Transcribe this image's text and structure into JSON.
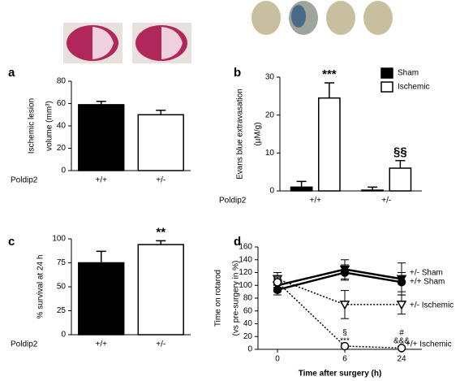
{
  "chart_data": [
    {
      "type": "bar",
      "panel": "a",
      "ylabel": [
        "Ischemic lesion",
        "volume (mm³)"
      ],
      "row_label": "Poldip2",
      "categories": [
        "+/+",
        "+/-"
      ],
      "values": [
        59,
        50
      ],
      "errors": [
        3,
        4
      ],
      "colors": [
        "#000000",
        "#ffffff"
      ],
      "ylim": [
        0,
        80
      ],
      "yticks": [
        0,
        20,
        40,
        60,
        80
      ]
    },
    {
      "type": "bar",
      "panel": "b",
      "ylabel": [
        "Evans blue extravasation",
        "(µM/g)"
      ],
      "row_label": "Poldip2",
      "categories": [
        "+/+",
        "+/-"
      ],
      "series": [
        {
          "name": "Sham",
          "color": "#000000",
          "values": [
            1,
            0.2
          ],
          "errors": [
            1.5,
            0.8
          ]
        },
        {
          "name": "Ischemic",
          "color": "#ffffff",
          "values": [
            24.5,
            6
          ],
          "errors": [
            4,
            2
          ]
        }
      ],
      "annotations": [
        "***",
        "§§"
      ],
      "ylim": [
        0,
        30
      ],
      "yticks": [
        0,
        10,
        20,
        30
      ]
    },
    {
      "type": "bar",
      "panel": "c",
      "ylabel": [
        "% survival at 24 h"
      ],
      "row_label": "Poldip2",
      "categories": [
        "+/+",
        "+/-"
      ],
      "values": [
        75,
        94
      ],
      "errors": [
        12,
        4
      ],
      "colors": [
        "#000000",
        "#ffffff"
      ],
      "annotations": [
        "**"
      ],
      "ylim": [
        0,
        100
      ],
      "yticks": [
        0,
        25,
        50,
        75,
        100
      ]
    },
    {
      "type": "line",
      "panel": "d",
      "ylabel": [
        "Time on rotarod",
        "(vs pre-surgery in %)"
      ],
      "xlabel": "Time after surgery (h)",
      "categories": [
        "0",
        "6",
        "24"
      ],
      "series": [
        {
          "name": "+/- Sham",
          "color": "#000000",
          "marker": "triangle",
          "filled": true,
          "dashed": false,
          "values": [
            100,
            125,
            110
          ],
          "errors": [
            10,
            15,
            25
          ]
        },
        {
          "name": "+/+ Sham",
          "color": "#000000",
          "marker": "circle",
          "filled": true,
          "dashed": false,
          "values": [
            93,
            120,
            105
          ],
          "errors": [
            8,
            12,
            15
          ]
        },
        {
          "name": "+/- Ischemic",
          "color": "#000000",
          "marker": "triangle",
          "filled": false,
          "dashed": true,
          "values": [
            110,
            70,
            70
          ],
          "errors": [
            10,
            22,
            15
          ]
        },
        {
          "name": "+/+ Ischemic",
          "color": "#000000",
          "marker": "circle",
          "filled": false,
          "dashed": true,
          "values": [
            105,
            5,
            2
          ],
          "errors": [
            8,
            2,
            2
          ]
        }
      ],
      "annotations": [
        "§",
        "***",
        "#",
        "&&&"
      ],
      "ylim": [
        0,
        160
      ],
      "yticks": [
        0,
        20,
        40,
        60,
        80,
        100,
        120,
        140,
        160
      ]
    }
  ]
}
